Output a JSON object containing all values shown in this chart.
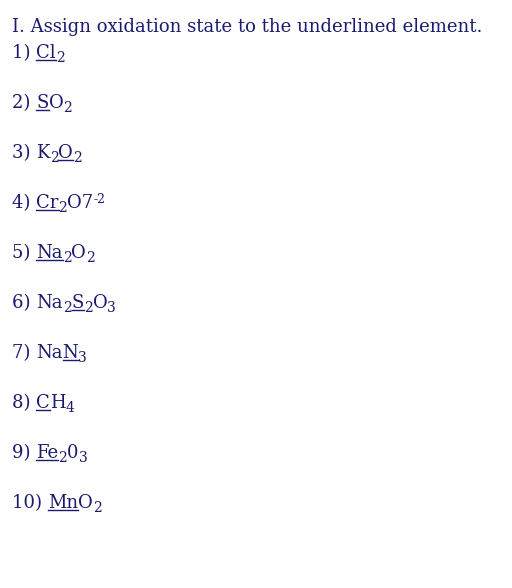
{
  "title": "I. Assign oxidation state to the underlined element.",
  "background_color": "#ffffff",
  "text_color": "#1a1a6e",
  "font_size": 13,
  "sub_font_size": 10,
  "sup_font_size": 9,
  "items": [
    {
      "number": "1) ",
      "segments": [
        {
          "text": "Cl",
          "underline": true,
          "sub": false,
          "sup": false
        },
        {
          "text": "2",
          "underline": false,
          "sub": true,
          "sup": false
        }
      ]
    },
    {
      "number": "2) ",
      "segments": [
        {
          "text": "S",
          "underline": true,
          "sub": false,
          "sup": false
        },
        {
          "text": "O",
          "underline": false,
          "sub": false,
          "sup": false
        },
        {
          "text": "2",
          "underline": false,
          "sub": true,
          "sup": false
        }
      ]
    },
    {
      "number": "3) ",
      "segments": [
        {
          "text": "K",
          "underline": false,
          "sub": false,
          "sup": false
        },
        {
          "text": "2",
          "underline": false,
          "sub": true,
          "sup": false
        },
        {
          "text": "O",
          "underline": true,
          "sub": false,
          "sup": false
        },
        {
          "text": "2",
          "underline": false,
          "sub": true,
          "sup": false
        }
      ]
    },
    {
      "number": "4) ",
      "segments": [
        {
          "text": "Cr",
          "underline": true,
          "sub": false,
          "sup": false
        },
        {
          "text": "2",
          "underline": false,
          "sub": true,
          "sup": false
        },
        {
          "text": "O7",
          "underline": false,
          "sub": false,
          "sup": false
        },
        {
          "text": "-2",
          "underline": false,
          "sub": false,
          "sup": true
        }
      ]
    },
    {
      "number": "5) ",
      "segments": [
        {
          "text": "Na",
          "underline": true,
          "sub": false,
          "sup": false
        },
        {
          "text": "2",
          "underline": false,
          "sub": true,
          "sup": false
        },
        {
          "text": "O",
          "underline": false,
          "sub": false,
          "sup": false
        },
        {
          "text": "2",
          "underline": false,
          "sub": true,
          "sup": false
        }
      ]
    },
    {
      "number": "6) ",
      "segments": [
        {
          "text": "Na",
          "underline": false,
          "sub": false,
          "sup": false
        },
        {
          "text": "2",
          "underline": false,
          "sub": true,
          "sup": false
        },
        {
          "text": "S",
          "underline": true,
          "sub": false,
          "sup": false
        },
        {
          "text": "2",
          "underline": false,
          "sub": true,
          "sup": false
        },
        {
          "text": "O",
          "underline": false,
          "sub": false,
          "sup": false
        },
        {
          "text": "3",
          "underline": false,
          "sub": true,
          "sup": false
        }
      ]
    },
    {
      "number": "7) ",
      "segments": [
        {
          "text": "Na",
          "underline": false,
          "sub": false,
          "sup": false
        },
        {
          "text": "N",
          "underline": true,
          "sub": false,
          "sup": false
        },
        {
          "text": "3",
          "underline": false,
          "sub": true,
          "sup": false
        }
      ]
    },
    {
      "number": "8) ",
      "segments": [
        {
          "text": "C",
          "underline": true,
          "sub": false,
          "sup": false
        },
        {
          "text": "H",
          "underline": false,
          "sub": false,
          "sup": false
        },
        {
          "text": "4",
          "underline": false,
          "sub": true,
          "sup": false
        }
      ]
    },
    {
      "number": "9) ",
      "segments": [
        {
          "text": "Fe",
          "underline": true,
          "sub": false,
          "sup": false
        },
        {
          "text": "2",
          "underline": false,
          "sub": true,
          "sup": false
        },
        {
          "text": "0",
          "underline": false,
          "sub": false,
          "sup": false
        },
        {
          "text": "3",
          "underline": false,
          "sub": true,
          "sup": false
        }
      ]
    },
    {
      "number": "10) ",
      "segments": [
        {
          "text": "Mn",
          "underline": true,
          "sub": false,
          "sup": false
        },
        {
          "text": "O",
          "underline": false,
          "sub": false,
          "sup": false
        },
        {
          "text": "2",
          "underline": false,
          "sub": true,
          "sup": false
        }
      ]
    }
  ]
}
